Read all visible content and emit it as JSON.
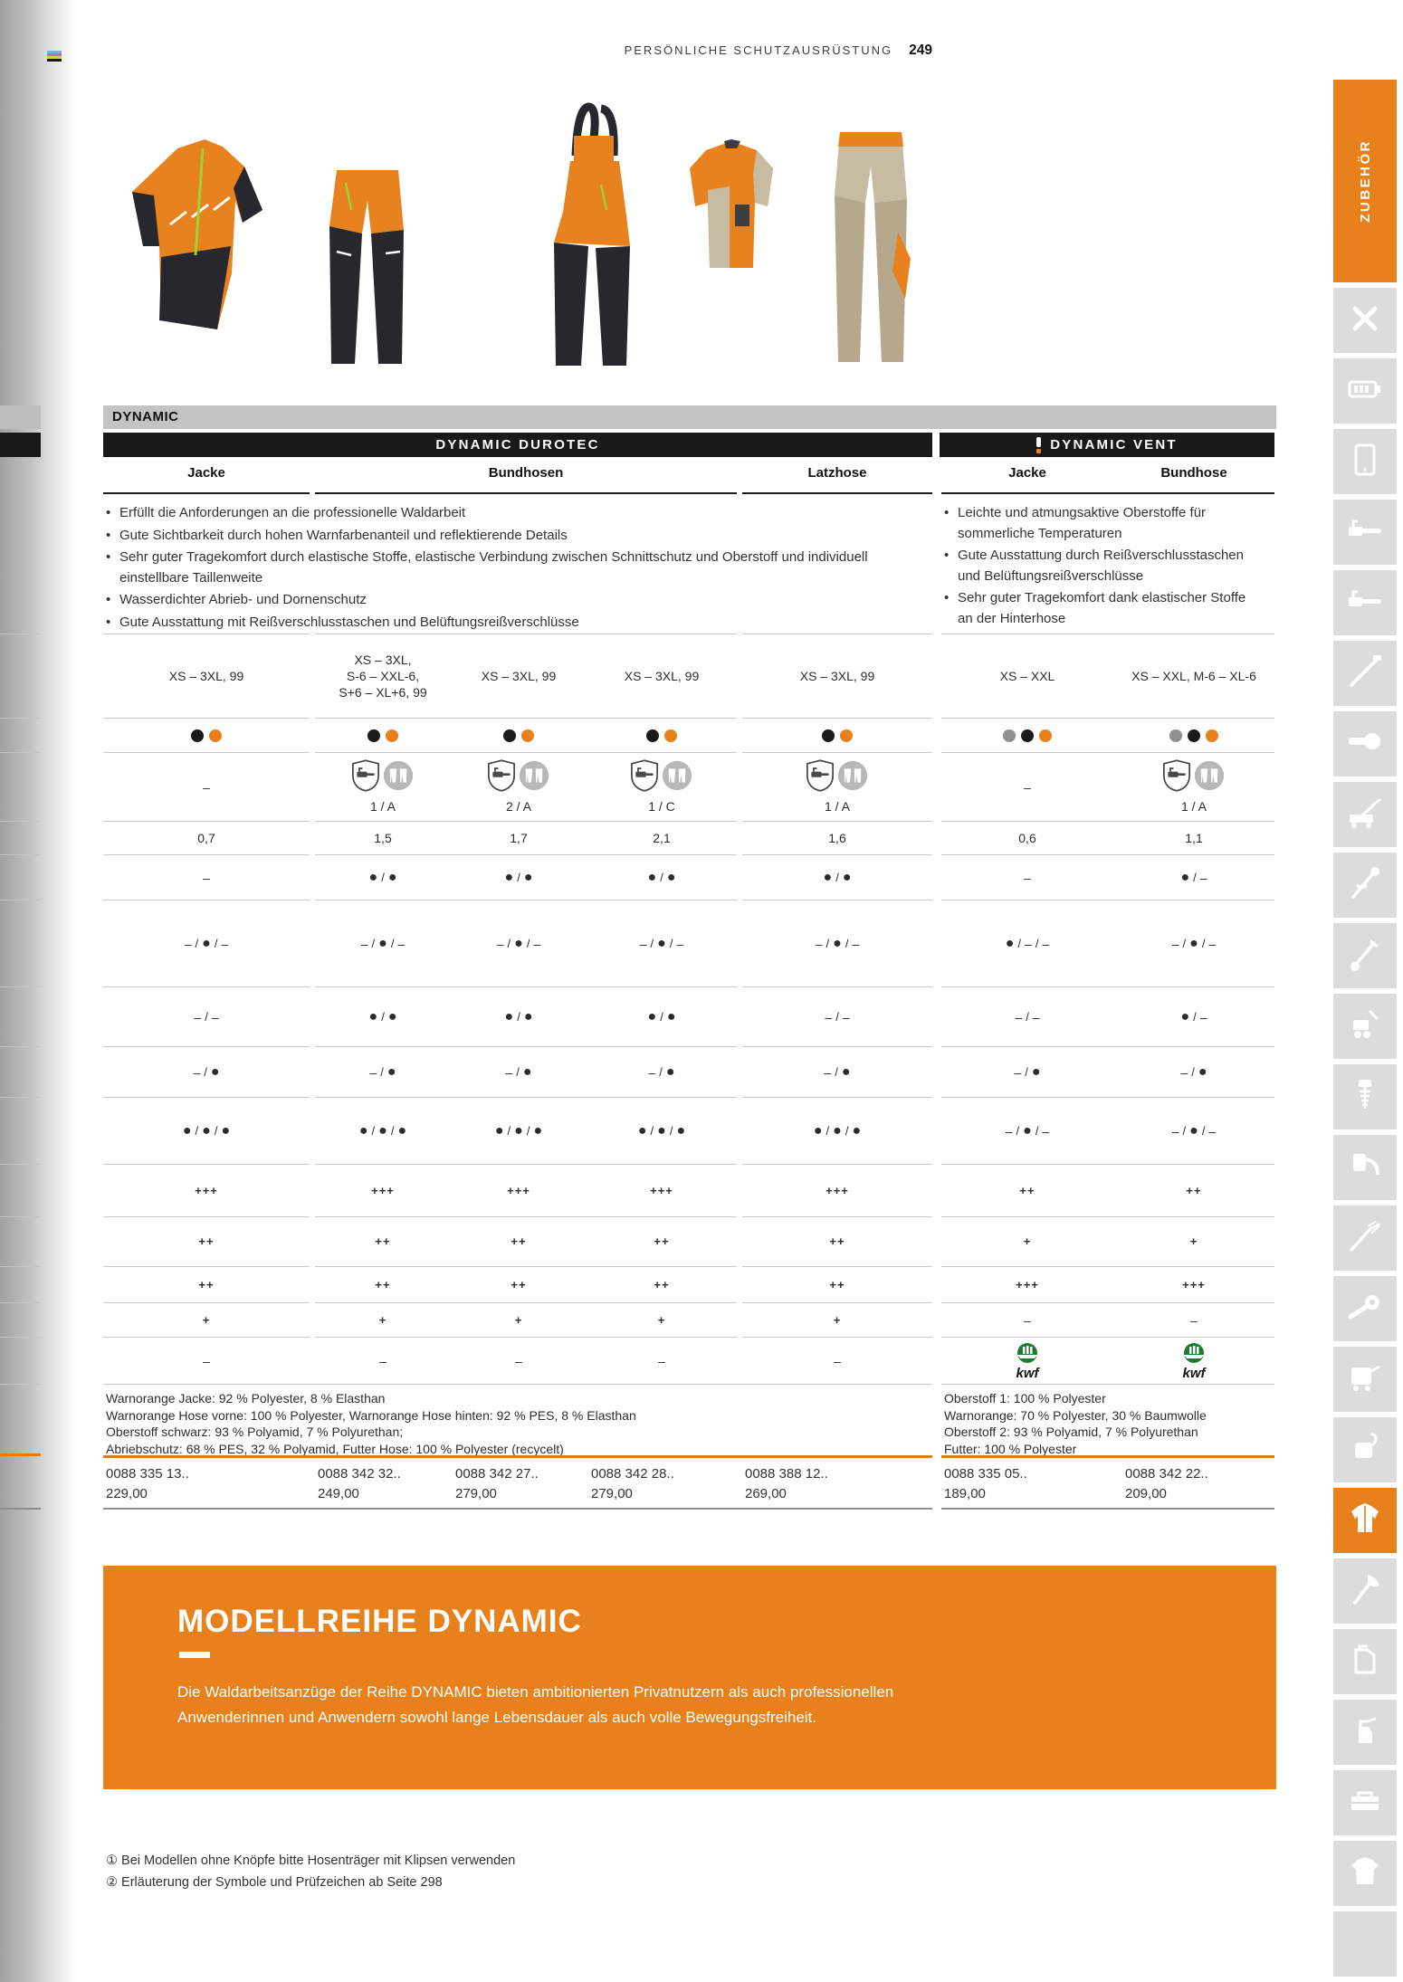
{
  "page": {
    "section_label": "PERSÖNLICHE SCHUTZAUSRÜSTUNG",
    "page_number": "249"
  },
  "sidebar": {
    "tab_label": "ZUBEHÖR",
    "active_index": 17,
    "items": [
      {
        "icon": "tools-icon"
      },
      {
        "icon": "battery-icon"
      },
      {
        "icon": "tablet-icon"
      },
      {
        "icon": "chainsaw-icon"
      },
      {
        "icon": "chainsaw-icon"
      },
      {
        "icon": "pole-pruner-icon"
      },
      {
        "icon": "cut-off-saw-icon"
      },
      {
        "icon": "lawn-mower-icon"
      },
      {
        "icon": "trimmer-icon"
      },
      {
        "icon": "brushcutter-icon"
      },
      {
        "icon": "tiller-icon"
      },
      {
        "icon": "earth-auger-icon"
      },
      {
        "icon": "mist-blower-icon"
      },
      {
        "icon": "pole-hedge-trimmer-icon"
      },
      {
        "icon": "blower-icon"
      },
      {
        "icon": "pressure-washer-icon"
      },
      {
        "icon": "vacuum-icon"
      },
      {
        "icon": "protective-jacket-icon"
      },
      {
        "icon": "axe-icon"
      },
      {
        "icon": "canister-icon"
      },
      {
        "icon": "spray-bottle-icon"
      },
      {
        "icon": "toolbox-icon"
      },
      {
        "icon": "tshirt-icon"
      },
      {
        "icon": "empty"
      }
    ]
  },
  "colors": {
    "accent": "#E8811C",
    "bar_black": "#191919",
    "series_bar_gray": "#c3c3c3",
    "dot_black": "#1a1a1a",
    "dot_orange": "#E8811C",
    "dot_gray": "#8f8f8f",
    "kwf_green": "#1E7B33"
  },
  "table": {
    "series_label": "DYNAMIC",
    "kwf_label": "kwf",
    "sections": [
      {
        "title": "DYNAMIC DUROTEC",
        "alert": false,
        "columns": [
          "Jacke",
          "Bundhosen",
          "Latzhose"
        ],
        "features": [
          "Erfüllt die Anforderungen an die professionelle Waldarbeit",
          "Gute Sichtbarkeit durch hohen Warnfarbenanteil und reflektierende Details",
          "Sehr guter Tragekomfort durch elastische Stoffe, elastische Verbindung zwischen Schnittschutz und Oberstoff und individuell einstellbare Taillenweite",
          "Wasserdichter Abrieb- und Dornenschutz",
          "Gute Ausstattung mit Reißverschlusstaschen und Belüftungsreißverschlüsse"
        ],
        "materials": [
          "Warnorange Jacke: 92 % Polyester, 8 % Elasthan",
          "Warnorange Hose vorne: 100 % Polyester, Warnorange Hose hinten: 92 % PES, 8 % Elasthan",
          "Oberstoff schwarz: 93 % Polyamid, 7 % Polyurethan;",
          "Abriebschutz: 68 % PES, 32 % Polyamid, Futter Hose: 100 % Polyester (recycelt)"
        ]
      },
      {
        "title": "DYNAMIC VENT",
        "alert": true,
        "columns": [
          "Jacke",
          "Bundhose"
        ],
        "features": [
          "Leichte und atmungsaktive Oberstoffe für sommerliche Temperaturen",
          "Gute Ausstattung durch Reißverschlusstaschen und Belüftungsreißverschlüsse",
          "Sehr guter Tragekomfort dank elastischer Stoffe an der Hinterhose"
        ],
        "materials": [
          "Oberstoff 1: 100 % Polyester",
          "Warnorange: 70 % Polyester, 30 % Baumwolle",
          "Oberstoff 2: 93 % Polyamid, 7 % Polyurethan",
          "Futter: 100 % Polyester"
        ]
      }
    ],
    "rows": [
      {
        "id": "sizes",
        "cells": [
          {
            "type": "text",
            "value": "XS – 3XL, 99"
          },
          {
            "type": "text",
            "value": "XS – 3XL,\nS-6 – XXL-6,\nS+6 – XL+6, 99"
          },
          {
            "type": "text",
            "value": "XS – 3XL, 99"
          },
          {
            "type": "text",
            "value": "XS – 3XL, 99"
          },
          {
            "type": "text",
            "value": "XS – 3XL, 99"
          },
          {
            "type": "text",
            "value": "XS – XXL"
          },
          {
            "type": "text",
            "value": "XS – XXL, M-6 – XL-6"
          }
        ]
      },
      {
        "id": "colors",
        "cells": [
          {
            "type": "dots",
            "value": [
              "black",
              "orange"
            ]
          },
          {
            "type": "dots",
            "value": [
              "black",
              "orange"
            ]
          },
          {
            "type": "dots",
            "value": [
              "black",
              "orange"
            ]
          },
          {
            "type": "dots",
            "value": [
              "black",
              "orange"
            ]
          },
          {
            "type": "dots",
            "value": [
              "black",
              "orange"
            ]
          },
          {
            "type": "dots",
            "value": [
              "gray",
              "black",
              "orange"
            ]
          },
          {
            "type": "dots",
            "value": [
              "gray",
              "black",
              "orange"
            ]
          }
        ]
      },
      {
        "id": "protection",
        "cells": [
          {
            "type": "sym",
            "value": "–"
          },
          {
            "type": "protection",
            "value": "1 / A"
          },
          {
            "type": "protection",
            "value": "2 / A"
          },
          {
            "type": "protection",
            "value": "1 / C"
          },
          {
            "type": "protection",
            "value": "1 / A"
          },
          {
            "type": "sym",
            "value": "–"
          },
          {
            "type": "protection",
            "value": "1 / A"
          }
        ]
      },
      {
        "id": "weight",
        "cells": [
          {
            "type": "text",
            "value": "0,7"
          },
          {
            "type": "text",
            "value": "1,5"
          },
          {
            "type": "text",
            "value": "1,7"
          },
          {
            "type": "text",
            "value": "2,1"
          },
          {
            "type": "text",
            "value": "1,6"
          },
          {
            "type": "text",
            "value": "0,6"
          },
          {
            "type": "text",
            "value": "1,1"
          }
        ]
      },
      {
        "id": "s1",
        "cells": [
          {
            "type": "sym",
            "value": "–"
          },
          {
            "type": "sym",
            "value": "●/●"
          },
          {
            "type": "sym",
            "value": "●/●"
          },
          {
            "type": "sym",
            "value": "●/●"
          },
          {
            "type": "sym",
            "value": "●/●"
          },
          {
            "type": "sym",
            "value": "–"
          },
          {
            "type": "sym",
            "value": "●/–"
          }
        ]
      },
      {
        "id": "s2",
        "cells": [
          {
            "type": "sym",
            "value": "–/●/–"
          },
          {
            "type": "sym",
            "value": "–/●/–"
          },
          {
            "type": "sym",
            "value": "–/●/–"
          },
          {
            "type": "sym",
            "value": "–/●/–"
          },
          {
            "type": "sym",
            "value": "–/●/–"
          },
          {
            "type": "sym",
            "value": "●/–/–"
          },
          {
            "type": "sym",
            "value": "–/●/–"
          }
        ]
      },
      {
        "id": "s3",
        "cells": [
          {
            "type": "sym",
            "value": "–/–"
          },
          {
            "type": "sym",
            "value": "●/●"
          },
          {
            "type": "sym",
            "value": "●/●"
          },
          {
            "type": "sym",
            "value": "●/●"
          },
          {
            "type": "sym",
            "value": "–/–"
          },
          {
            "type": "sym",
            "value": "–/–"
          },
          {
            "type": "sym",
            "value": "●/–"
          }
        ]
      },
      {
        "id": "s4",
        "cells": [
          {
            "type": "sym",
            "value": "–/●"
          },
          {
            "type": "sym",
            "value": "–/●"
          },
          {
            "type": "sym",
            "value": "–/●"
          },
          {
            "type": "sym",
            "value": "–/●"
          },
          {
            "type": "sym",
            "value": "–/●"
          },
          {
            "type": "sym",
            "value": "–/●"
          },
          {
            "type": "sym",
            "value": "–/●"
          }
        ]
      },
      {
        "id": "s5",
        "cells": [
          {
            "type": "sym",
            "value": "●/●/●"
          },
          {
            "type": "sym",
            "value": "●/●/●"
          },
          {
            "type": "sym",
            "value": "●/●/●"
          },
          {
            "type": "sym",
            "value": "●/●/●"
          },
          {
            "type": "sym",
            "value": "●/●/●"
          },
          {
            "type": "sym",
            "value": "–/●/–"
          },
          {
            "type": "sym",
            "value": "–/●/–"
          }
        ]
      },
      {
        "id": "p1",
        "cells": [
          {
            "type": "plus",
            "value": "+++"
          },
          {
            "type": "plus",
            "value": "+++"
          },
          {
            "type": "plus",
            "value": "+++"
          },
          {
            "type": "plus",
            "value": "+++"
          },
          {
            "type": "plus",
            "value": "+++"
          },
          {
            "type": "plus",
            "value": "++"
          },
          {
            "type": "plus",
            "value": "++"
          }
        ]
      },
      {
        "id": "p2",
        "cells": [
          {
            "type": "plus",
            "value": "++"
          },
          {
            "type": "plus",
            "value": "++"
          },
          {
            "type": "plus",
            "value": "++"
          },
          {
            "type": "plus",
            "value": "++"
          },
          {
            "type": "plus",
            "value": "++"
          },
          {
            "type": "plus",
            "value": "+"
          },
          {
            "type": "plus",
            "value": "+"
          }
        ]
      },
      {
        "id": "p3",
        "cells": [
          {
            "type": "plus",
            "value": "++"
          },
          {
            "type": "plus",
            "value": "++"
          },
          {
            "type": "plus",
            "value": "++"
          },
          {
            "type": "plus",
            "value": "++"
          },
          {
            "type": "plus",
            "value": "++"
          },
          {
            "type": "plus",
            "value": "+++"
          },
          {
            "type": "plus",
            "value": "+++"
          }
        ]
      },
      {
        "id": "p4",
        "cells": [
          {
            "type": "plus",
            "value": "+"
          },
          {
            "type": "plus",
            "value": "+"
          },
          {
            "type": "plus",
            "value": "+"
          },
          {
            "type": "plus",
            "value": "+"
          },
          {
            "type": "plus",
            "value": "+"
          },
          {
            "type": "sym",
            "value": "–"
          },
          {
            "type": "sym",
            "value": "–"
          }
        ]
      },
      {
        "id": "cert",
        "cells": [
          {
            "type": "sym",
            "value": "–"
          },
          {
            "type": "sym",
            "value": "–"
          },
          {
            "type": "sym",
            "value": "–"
          },
          {
            "type": "sym",
            "value": "–"
          },
          {
            "type": "sym",
            "value": "–"
          },
          {
            "type": "kwf"
          },
          {
            "type": "kwf"
          }
        ]
      }
    ],
    "prices": [
      {
        "part_number": "0088 335 13..",
        "price": "229,00"
      },
      {
        "part_number": "0088 342 32..",
        "price": "249,00"
      },
      {
        "part_number": "0088 342 27..",
        "price": "279,00"
      },
      {
        "part_number": "0088 342 28..",
        "price": "279,00"
      },
      {
        "part_number": "0088 388 12..",
        "price": "269,00"
      },
      {
        "part_number": "0088 335 05..",
        "price": "189,00"
      },
      {
        "part_number": "0088 342 22..",
        "price": "209,00"
      }
    ]
  },
  "promo": {
    "title": "MODELLREIHE DYNAMIC",
    "text": "Die Waldarbeitsanzüge der Reihe DYNAMIC bieten ambitionierten Privatnutzern als auch professionellen Anwenderinnen und Anwendern sowohl lange Lebensdauer als auch volle Bewegungsfreiheit."
  },
  "footnotes": [
    "① Bei Modellen ohne Knöpfe bitte Hosenträger mit Klipsen verwenden",
    "② Erläuterung der Symbole und Prüfzeichen ab Seite 298"
  ]
}
